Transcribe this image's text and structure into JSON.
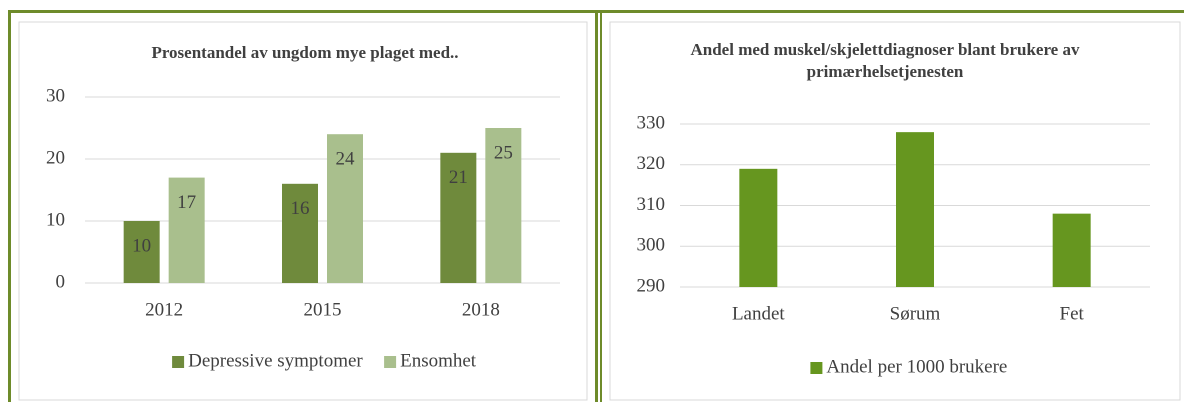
{
  "chart_data": [
    {
      "type": "bar",
      "title": "Prosentandel av ungdom mye plaget med..",
      "categories": [
        "2012",
        "2015",
        "2018"
      ],
      "series": [
        {
          "name": "Depressive symptomer",
          "color": "#6f8a3c",
          "values": [
            10,
            16,
            21
          ]
        },
        {
          "name": "Ensomhet",
          "color": "#a9bf8d",
          "values": [
            17,
            24,
            25
          ]
        }
      ],
      "ylim": [
        0,
        30
      ],
      "yticks": [
        0,
        10,
        20,
        30
      ],
      "grid": true,
      "data_labels": true,
      "legend": "bottom"
    },
    {
      "type": "bar",
      "title": "Andel med muskel/skjelettdiagnoser blant brukere av primærhelsetjenesten",
      "categories": [
        "Landet",
        "Sørum",
        "Fet"
      ],
      "series": [
        {
          "name": "Andel per 1000 brukere",
          "color": "#66961f",
          "values": [
            319,
            328,
            308
          ]
        }
      ],
      "ylim": [
        290,
        330
      ],
      "yticks": [
        290,
        300,
        310,
        320,
        330
      ],
      "grid": true,
      "data_labels": false,
      "legend": "bottom"
    }
  ]
}
